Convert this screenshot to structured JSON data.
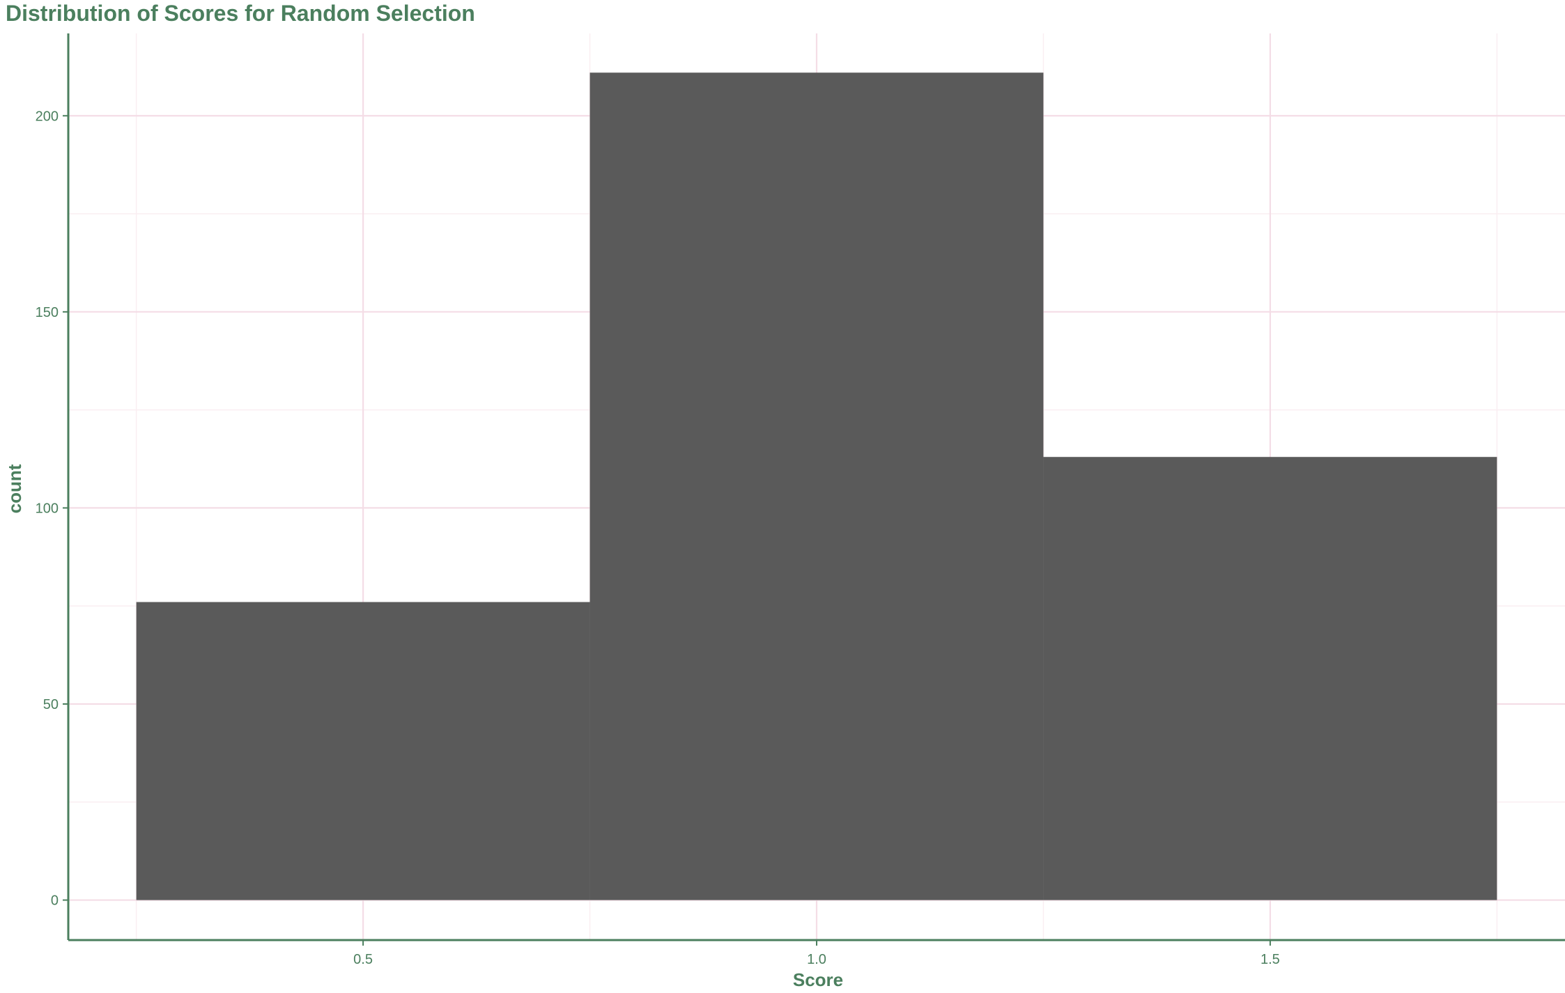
{
  "colors": {
    "accent": "#4b7f5e",
    "bar_fill": "#5a5a5a",
    "grid_major": "#f4dde6",
    "grid_minor": "#faeef2",
    "background": "#ffffff"
  },
  "chart_data": {
    "type": "bar",
    "title": "Distribution of Scores for Random Selection",
    "xlabel": "Score",
    "ylabel": "count",
    "bins": [
      {
        "x0": 0.25,
        "x1": 0.75,
        "count": 76
      },
      {
        "x0": 0.75,
        "x1": 1.25,
        "count": 211
      },
      {
        "x0": 1.25,
        "x1": 1.75,
        "count": 113
      }
    ],
    "xlim": [
      0.175,
      1.825
    ],
    "ylim": [
      -10.2,
      221
    ],
    "x_ticks": [
      0.5,
      1.0,
      1.5
    ],
    "x_tick_labels": [
      "0.5",
      "1.0",
      "1.5"
    ],
    "y_ticks": [
      0,
      50,
      100,
      150,
      200
    ],
    "y_tick_labels": [
      "0",
      "50",
      "100",
      "150",
      "200"
    ],
    "x_minor_ticks": [
      0.25,
      0.75,
      1.25,
      1.75
    ],
    "y_minor_ticks": [
      25,
      75,
      125,
      175
    ],
    "grid": true,
    "legend": "none"
  }
}
